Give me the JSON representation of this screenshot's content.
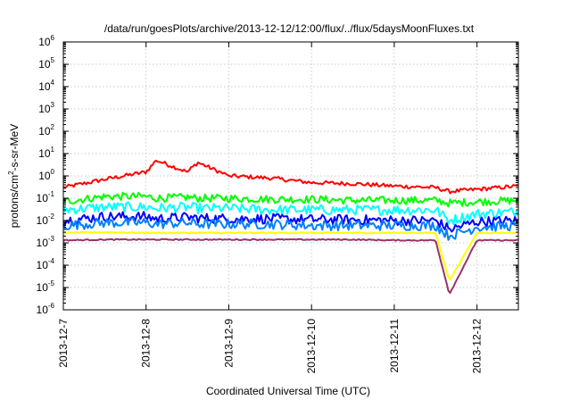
{
  "chart_data": {
    "type": "line",
    "title": "/data/run/goesPlots/archive/2013-12-12/12:00/flux/../flux/5daysMoonFluxes.txt",
    "xlabel": "Coordinated Universal Time (UTC)",
    "ylabel_parts": [
      "protons/cm",
      "2",
      "-s-sr-MeV"
    ],
    "xlim": [
      "2013-12-07 00:00",
      "2013-12-12 12:00"
    ],
    "x_ticks": [
      "2013-12-7",
      "2013-12-8",
      "2013-12-9",
      "2013-12-10",
      "2013-12-11",
      "2013-12-12"
    ],
    "yscale": "log",
    "ylim": [
      1e-06,
      1000000.0
    ],
    "y_ticks": [
      {
        "base": "10",
        "exp": "-6"
      },
      {
        "base": "10",
        "exp": "-5"
      },
      {
        "base": "10",
        "exp": "-4"
      },
      {
        "base": "10",
        "exp": "-3"
      },
      {
        "base": "10",
        "exp": "-2"
      },
      {
        "base": "10",
        "exp": "-1"
      },
      {
        "base": "10",
        "exp": "0"
      },
      {
        "base": "10",
        "exp": "1"
      },
      {
        "base": "10",
        "exp": "2"
      },
      {
        "base": "10",
        "exp": "3"
      },
      {
        "base": "10",
        "exp": "4"
      },
      {
        "base": "10",
        "exp": "5"
      },
      {
        "base": "10",
        "exp": "6"
      }
    ],
    "grid": true,
    "legend": "none",
    "x_dates": [
      "2013-12-07 00:00",
      "2013-12-07 12:00",
      "2013-12-08 00:00",
      "2013-12-08 03:00",
      "2013-12-08 12:00",
      "2013-12-08 15:00",
      "2013-12-09 00:00",
      "2013-12-09 12:00",
      "2013-12-10 00:00",
      "2013-12-10 12:00",
      "2013-12-11 00:00",
      "2013-12-11 12:00",
      "2013-12-11 16:00",
      "2013-12-12 00:00",
      "2013-12-12 12:00"
    ],
    "series": [
      {
        "color": "#ff0000",
        "values": [
          0.3,
          0.7,
          1.5,
          5,
          1.5,
          4,
          1.0,
          0.8,
          0.5,
          0.45,
          0.35,
          0.3,
          0.2,
          0.25,
          0.35
        ]
      },
      {
        "color": "#00ff00",
        "values": [
          0.07,
          0.12,
          0.12,
          0.1,
          0.11,
          0.1,
          0.1,
          0.09,
          0.09,
          0.08,
          0.08,
          0.08,
          0.06,
          0.07,
          0.08
        ]
      },
      {
        "color": "#00ffff",
        "values": [
          0.03,
          0.04,
          0.04,
          0.035,
          0.04,
          0.035,
          0.035,
          0.03,
          0.03,
          0.03,
          0.03,
          0.03,
          0.01,
          0.02,
          0.025
        ]
      },
      {
        "color": "#0000ff",
        "values": [
          0.01,
          0.015,
          0.015,
          0.012,
          0.014,
          0.013,
          0.012,
          0.012,
          0.011,
          0.011,
          0.01,
          0.01,
          0.004,
          0.009,
          0.01
        ]
      },
      {
        "color": "#0080ff",
        "values": [
          0.006,
          0.008,
          0.008,
          0.007,
          0.008,
          0.007,
          0.007,
          0.007,
          0.006,
          0.006,
          0.006,
          0.006,
          0.002,
          0.005,
          0.006
        ]
      },
      {
        "color": "#ffff00",
        "values": [
          0.0028,
          0.003,
          0.0028,
          0.0028,
          0.0028,
          0.0028,
          0.0028,
          0.0028,
          0.0028,
          0.0028,
          0.0028,
          0.0028,
          2e-05,
          0.0028,
          0.0028
        ]
      },
      {
        "color": "#993366",
        "values": [
          0.0013,
          0.0014,
          0.0014,
          0.0014,
          0.0014,
          0.0014,
          0.0014,
          0.0014,
          0.0014,
          0.0014,
          0.0013,
          0.0013,
          5e-06,
          0.0013,
          0.0013
        ]
      }
    ]
  }
}
